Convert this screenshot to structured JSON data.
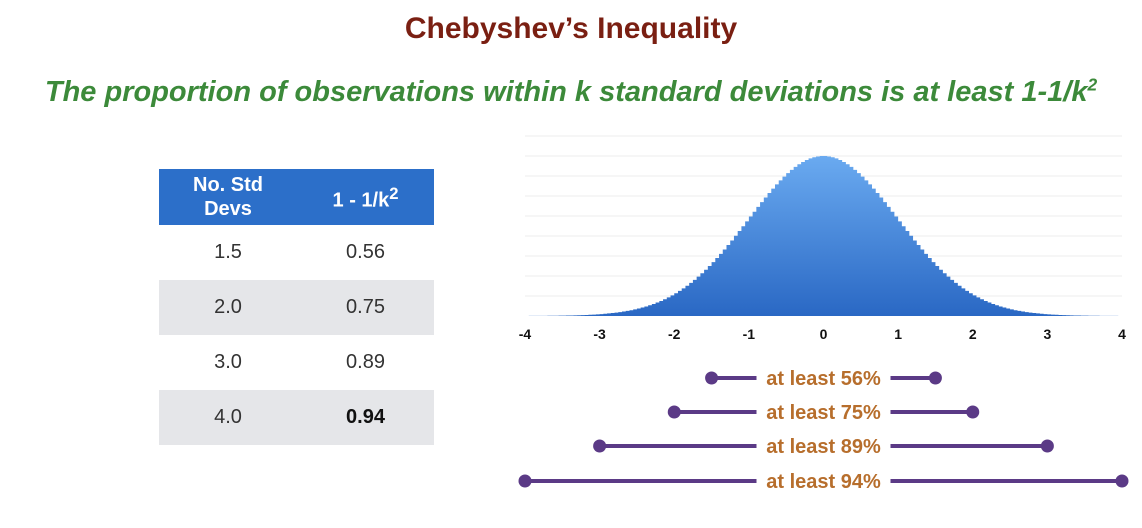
{
  "title": "Chebyshev’s Inequality",
  "subtitle": {
    "text": "The proportion of observations within k standard deviations is at least 1-1/k",
    "superscript": "2"
  },
  "table": {
    "headers": [
      {
        "text": "No. Std Devs",
        "sup": ""
      },
      {
        "text": "1 - 1/k",
        "sup": "2"
      }
    ],
    "rows": [
      {
        "k": "1.5",
        "value": "0.56",
        "shaded": false,
        "bold": false
      },
      {
        "k": "2.0",
        "value": "0.75",
        "shaded": true,
        "bold": false
      },
      {
        "k": "3.0",
        "value": "0.89",
        "shaded": false,
        "bold": false
      },
      {
        "k": "4.0",
        "value": "0.94",
        "shaded": true,
        "bold": true
      }
    ]
  },
  "chart_data": {
    "type": "area",
    "distribution": "standard normal",
    "x_range": [
      -4,
      4
    ],
    "x_ticks": [
      -4,
      -3,
      -2,
      -1,
      0,
      1,
      2,
      3,
      4
    ],
    "x_tick_labels": [
      "-4",
      "-3",
      "-2",
      "-1",
      "0",
      "1",
      "2",
      "3",
      "4"
    ],
    "grid": true,
    "colors": {
      "fill_top": "#6aaaf0",
      "fill_bottom": "#2a68c4",
      "interval": "#5b3a86",
      "interval_label": "#b76e2c"
    },
    "intervals": [
      {
        "k": 1.5,
        "low": -1.5,
        "high": 1.5,
        "label": "at least 56%"
      },
      {
        "k": 2,
        "low": -2,
        "high": 2,
        "label": "at least 75%"
      },
      {
        "k": 3,
        "low": -3,
        "high": 3,
        "label": "at least 89%"
      },
      {
        "k": 4,
        "low": -4,
        "high": 4,
        "label": "at least 94%"
      }
    ]
  }
}
